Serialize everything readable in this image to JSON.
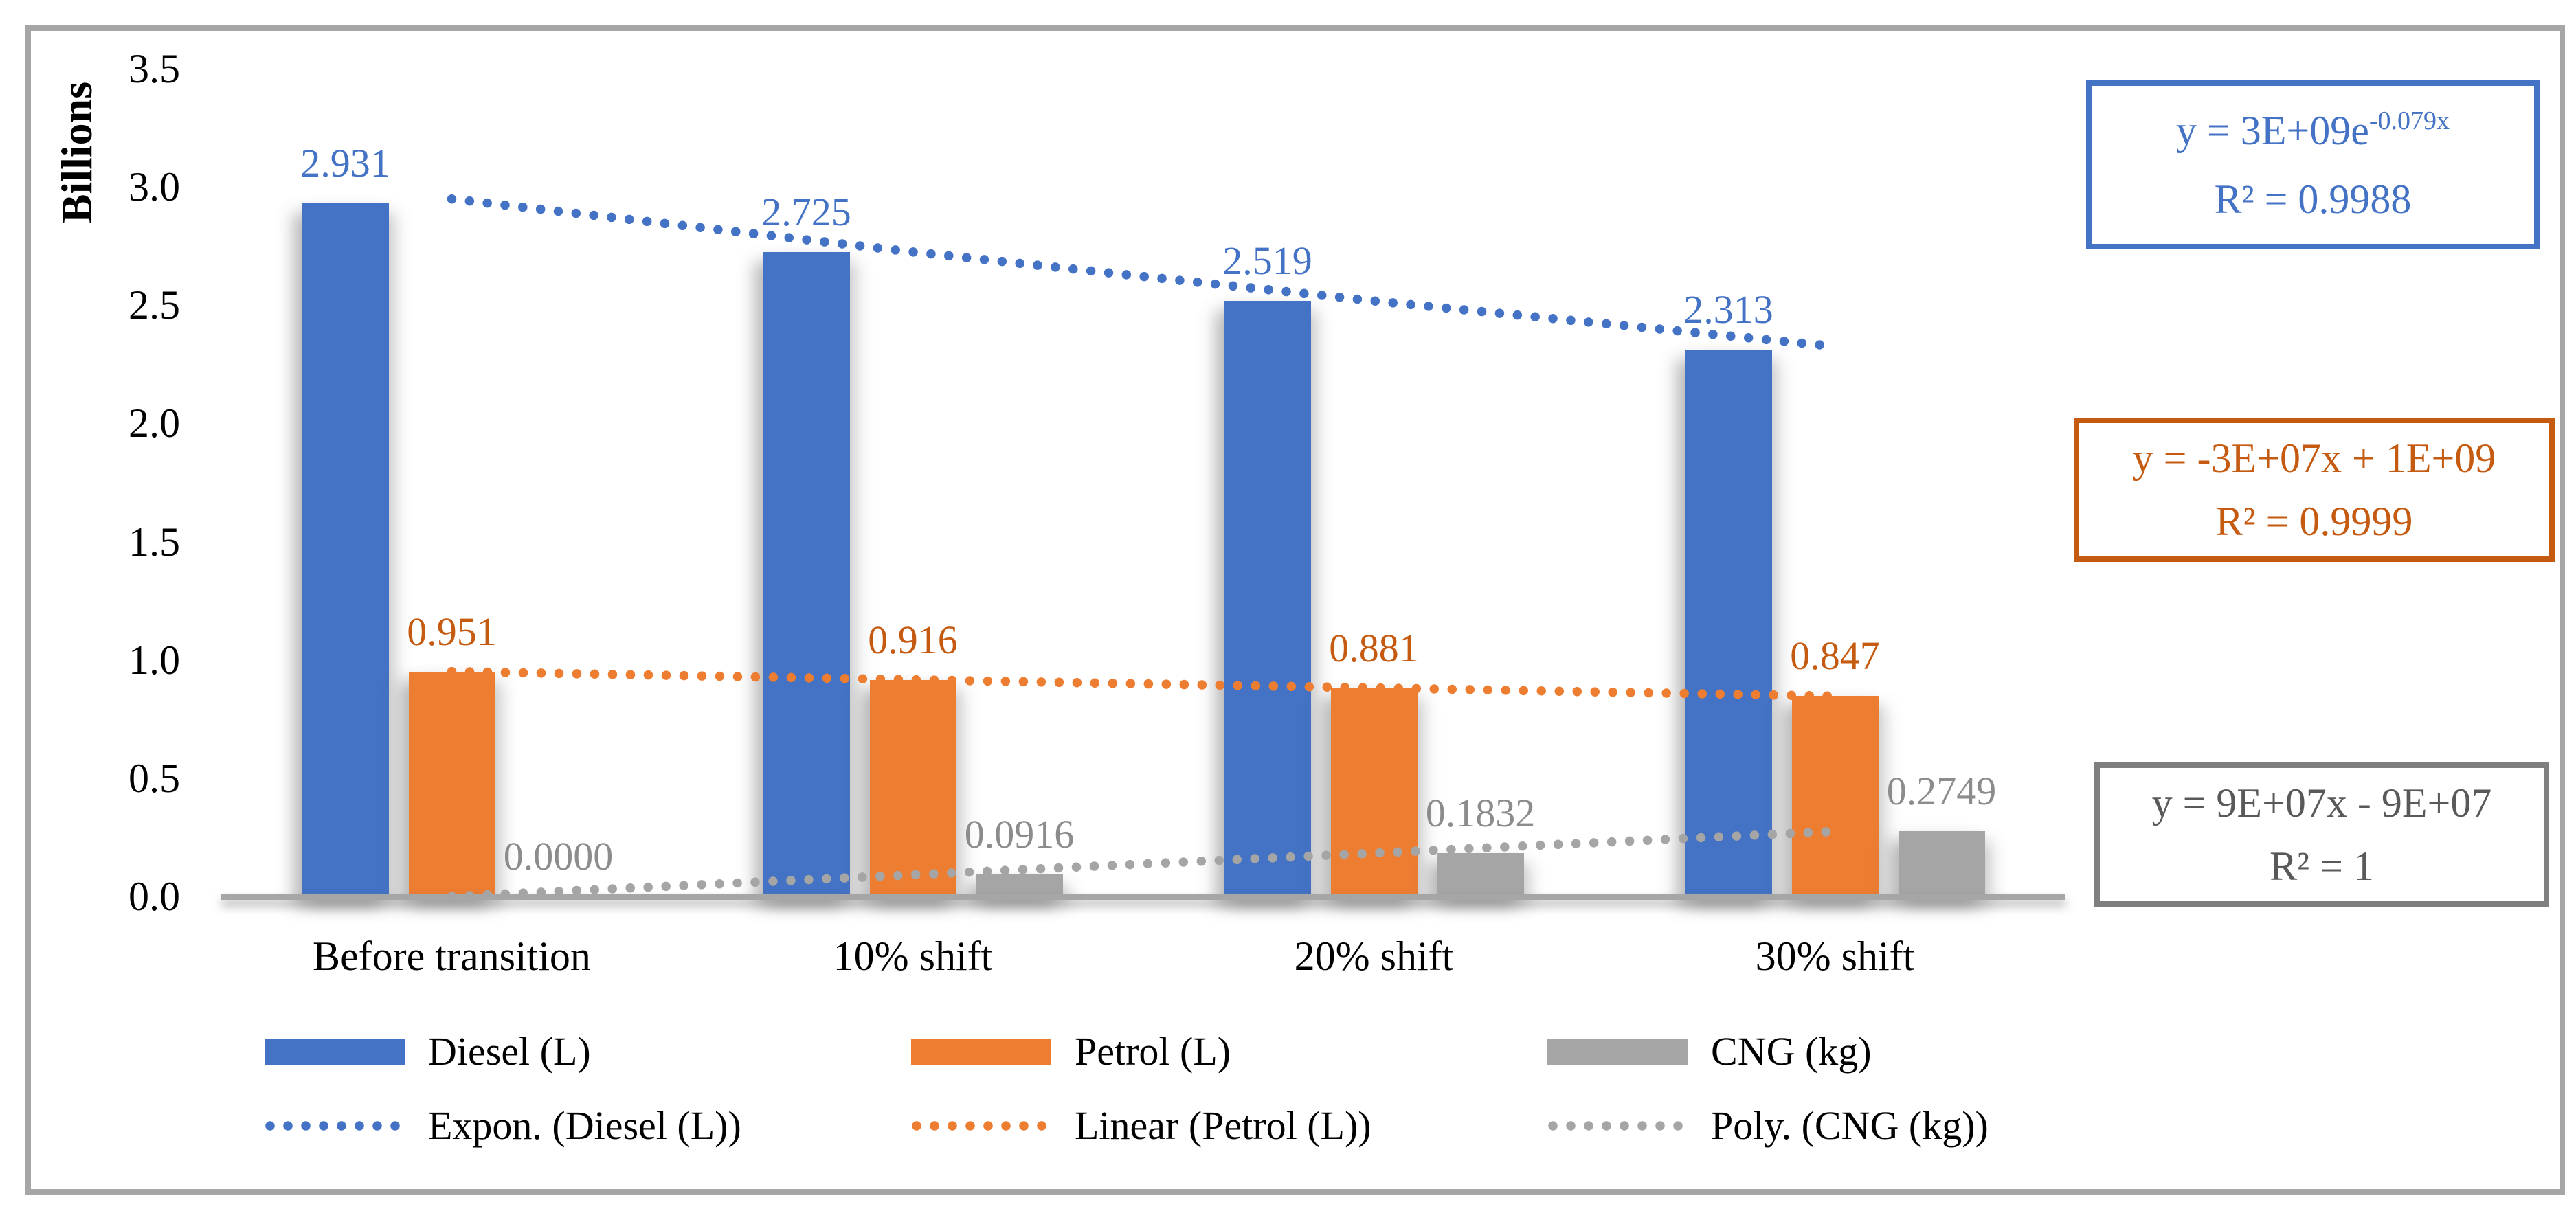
{
  "chart_data": {
    "type": "bar",
    "title": "",
    "ylabel": "Billions",
    "ylim": [
      0,
      3.5
    ],
    "ytick_step": 0.5,
    "ytick_labels": [
      "3.5",
      "3.0",
      "2.5",
      "2.0",
      "1.5",
      "1.0",
      "0.5",
      "0.0"
    ],
    "grid": "off",
    "legend_position": "bottom",
    "axis_line_color": "#A6A6A6",
    "frame_border_color": "#A6A6A6",
    "categories": [
      "Before transition",
      "10% shift",
      "20% shift",
      "30% shift"
    ],
    "series": [
      {
        "key": "diesel",
        "name": "Diesel (L)",
        "color": "#4472C4",
        "label_color": "#4472C4",
        "values": [
          2.931,
          2.725,
          2.519,
          2.313
        ],
        "value_labels": [
          "2.931",
          "2.725",
          "2.519",
          "2.313"
        ],
        "trendline": {
          "legend_label": "Expon. (Diesel (L))",
          "type": "exponential",
          "color": "#4472C4",
          "points": [
            2.949,
            2.725,
            2.518,
            2.326
          ]
        }
      },
      {
        "key": "petrol",
        "name": "Petrol (L)",
        "color": "#ED7D31",
        "label_color": "#C55A11",
        "values": [
          0.951,
          0.916,
          0.881,
          0.847
        ],
        "value_labels": [
          "0.951",
          "0.916",
          "0.881",
          "0.847"
        ],
        "trendline": {
          "legend_label": "Linear (Petrol (L))",
          "type": "linear",
          "color": "#ED7D31",
          "points": [
            0.951,
            0.9163,
            0.8817,
            0.847
          ]
        }
      },
      {
        "key": "cng",
        "name": "CNG (kg)",
        "color": "#A5A5A5",
        "label_color": "#8C8C8C",
        "values": [
          0.0,
          0.0916,
          0.1832,
          0.2749
        ],
        "value_labels": [
          "0.0000",
          "0.0916",
          "0.1832",
          "0.2749"
        ],
        "trendline": {
          "legend_label": "Poly. (CNG (kg))",
          "type": "polynomial",
          "color": "#A5A5A5",
          "points": [
            0.0,
            0.0916,
            0.1832,
            0.2749
          ]
        }
      }
    ],
    "equation_boxes": [
      {
        "series": "diesel",
        "line1_base": "y = 3E+09e",
        "line1_sup": "-0.079x",
        "line2": "R² = 0.9988",
        "border_color": "#4472C4",
        "text_color": "#4472C4"
      },
      {
        "series": "petrol",
        "line1_base": "y = -3E+07x + 1E+09",
        "line1_sup": "",
        "line2": "R² = 0.9999",
        "border_color": "#C55A11",
        "text_color": "#C55A11"
      },
      {
        "series": "cng",
        "line1_base": "y = 9E+07x - 9E+07",
        "line1_sup": "",
        "line2": "R² = 1",
        "border_color": "#7F7F7F",
        "text_color": "#595959"
      }
    ]
  }
}
